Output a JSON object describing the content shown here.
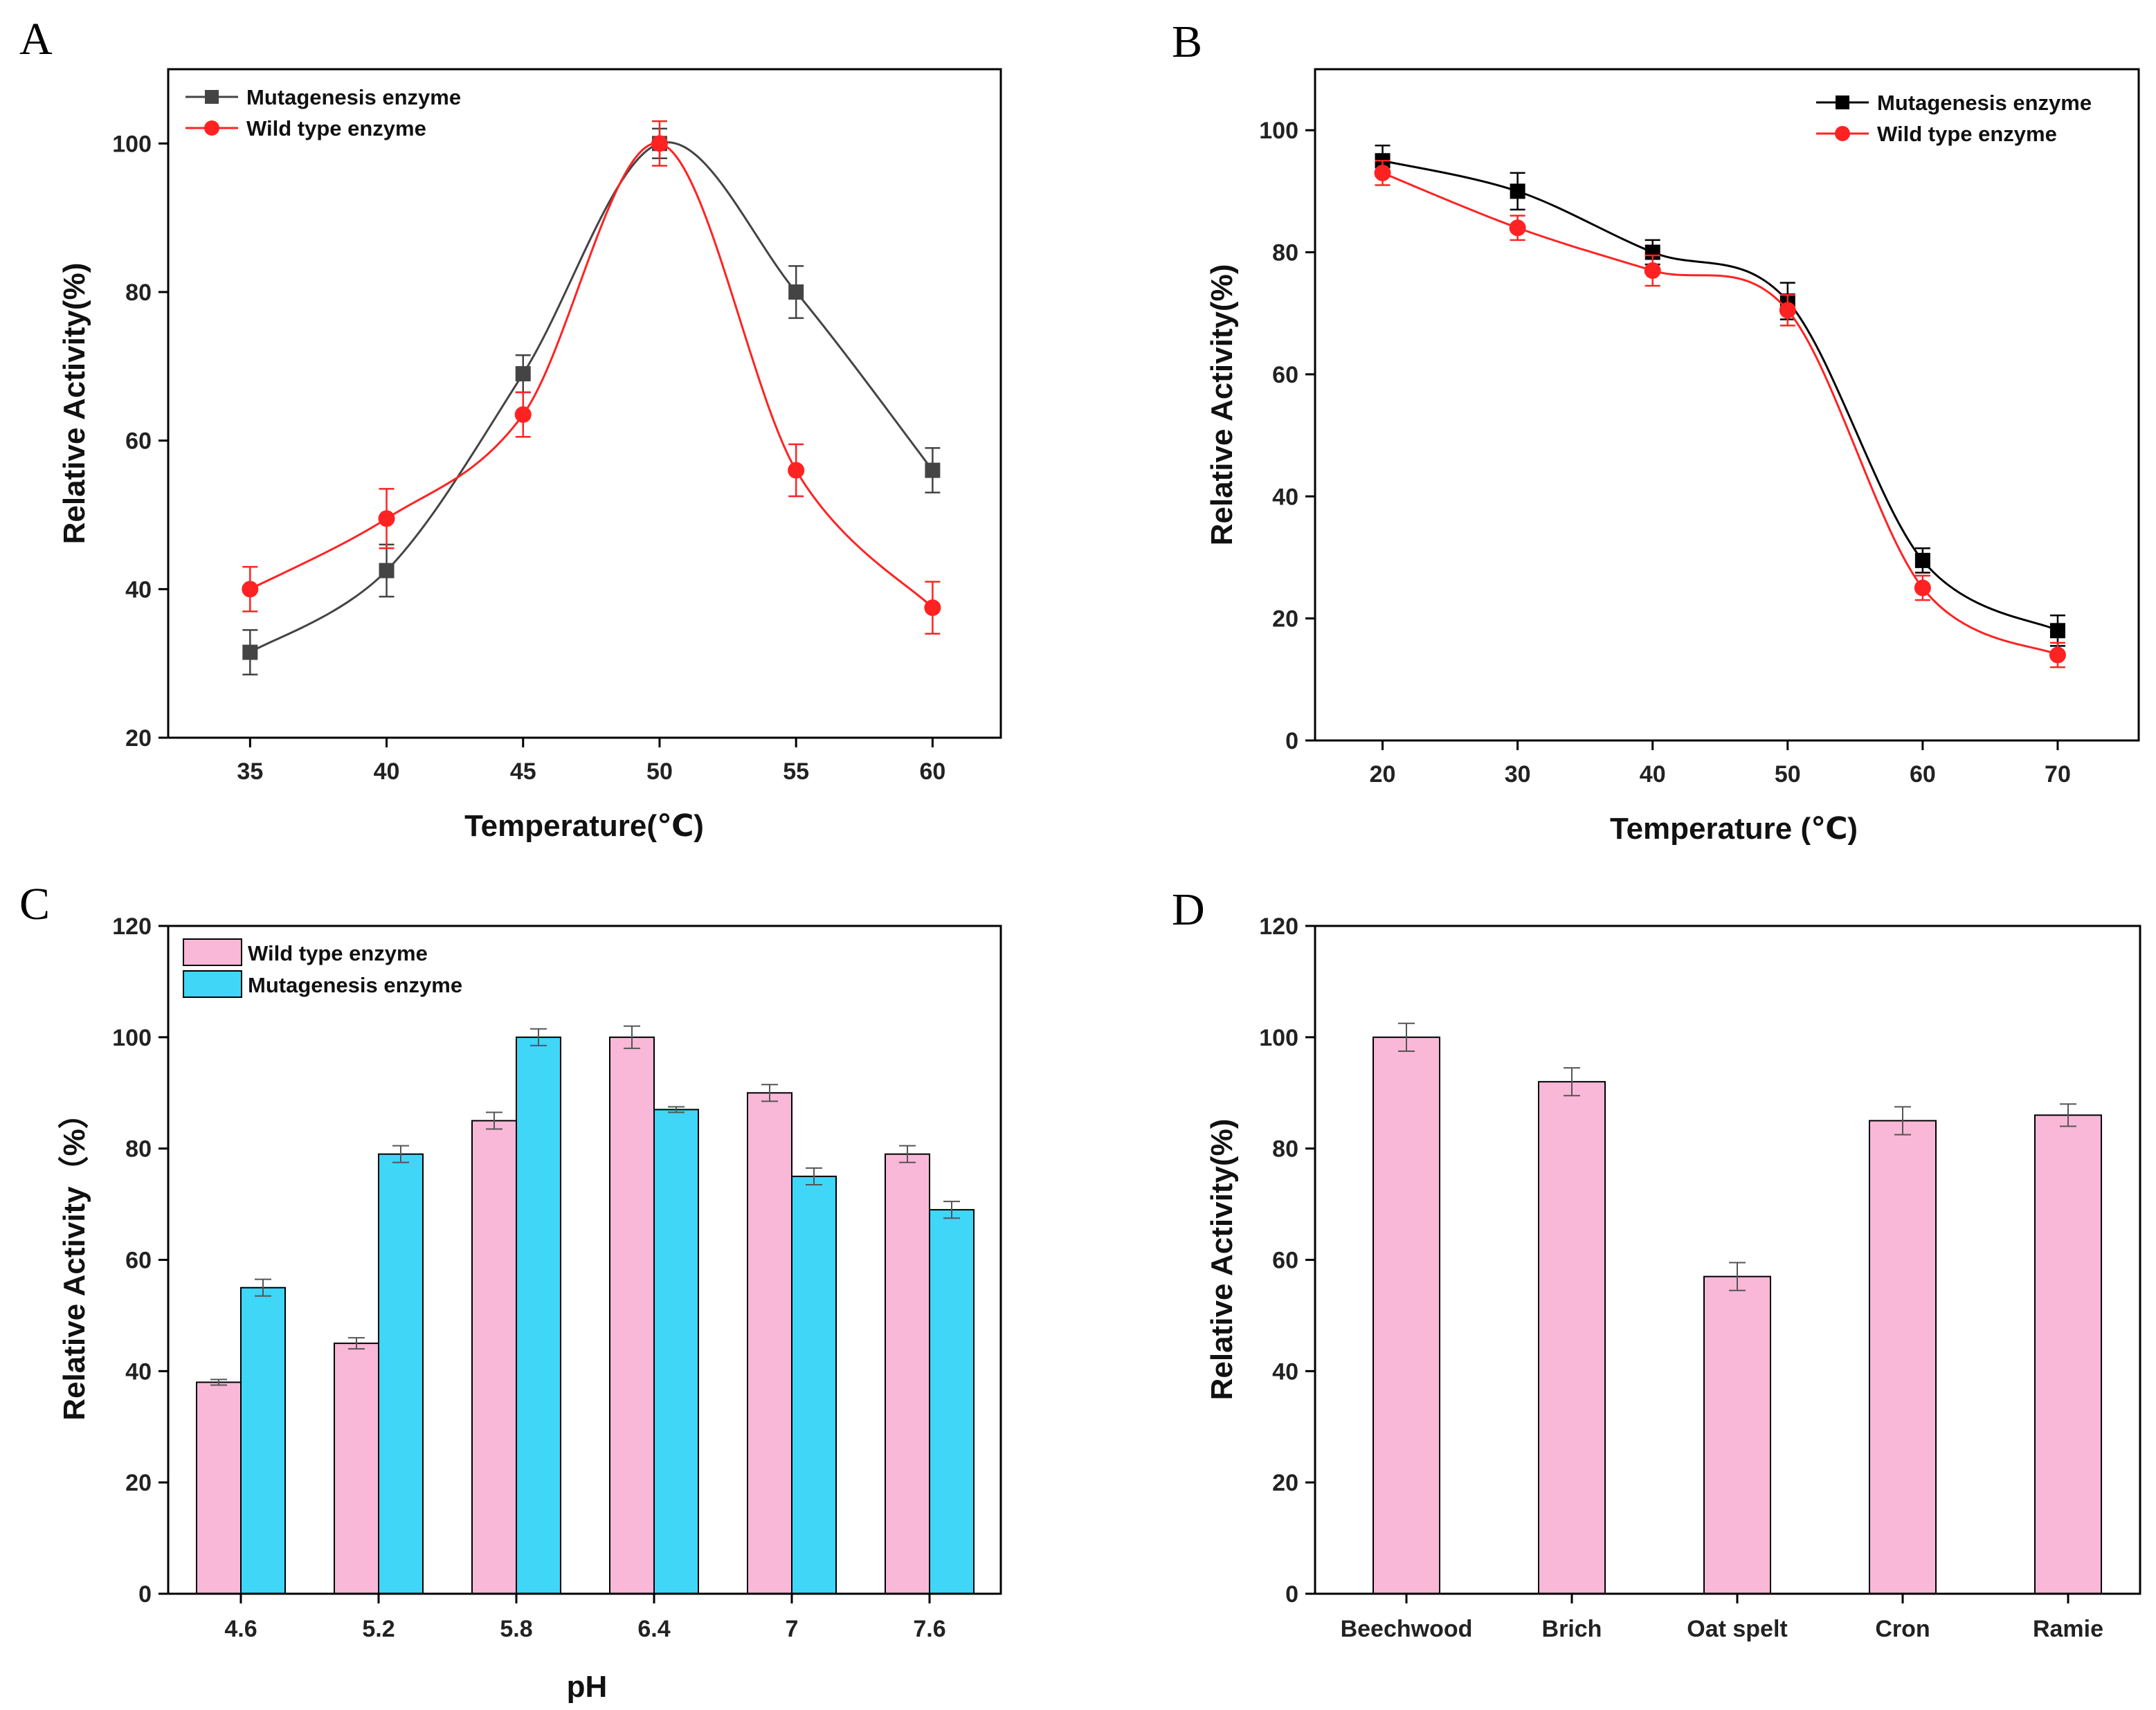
{
  "chart_data": [
    {
      "panel": "A",
      "type": "line",
      "xlabel": "Temperature(℃)",
      "ylabel": "Relative Activity(%)",
      "x": [
        35,
        40,
        45,
        50,
        55,
        60
      ],
      "xticks": [
        "35",
        "40",
        "45",
        "50",
        "55",
        "60"
      ],
      "xlim": [
        32,
        62.5
      ],
      "ylim": [
        20,
        110
      ],
      "yticks": [
        "20",
        "40",
        "60",
        "80",
        "100"
      ],
      "legend_position": "top-left",
      "series": [
        {
          "name": "Mutagenesis enzyme",
          "color": "#444444",
          "marker": "square",
          "values": [
            31.5,
            42.5,
            69,
            100,
            80,
            56
          ],
          "errors": [
            3,
            3.5,
            2.5,
            2,
            3.5,
            3
          ]
        },
        {
          "name": "Wild type enzyme",
          "color": "#ff2222",
          "marker": "circle",
          "values": [
            40,
            49.5,
            63.5,
            100,
            56,
            37.5
          ],
          "errors": [
            3,
            4,
            3,
            3,
            3.5,
            3.5
          ]
        }
      ]
    },
    {
      "panel": "B",
      "type": "line",
      "xlabel": "Temperature (℃)",
      "ylabel": "Relative Activity(%)",
      "x": [
        20,
        30,
        40,
        50,
        60,
        70
      ],
      "xticks": [
        "20",
        "30",
        "40",
        "50",
        "60",
        "70"
      ],
      "xlim": [
        15,
        76
      ],
      "ylim": [
        0,
        110
      ],
      "yticks": [
        "0",
        "20",
        "40",
        "60",
        "80",
        "100"
      ],
      "legend_position": "top-right",
      "series": [
        {
          "name": "Mutagenesis enzyme",
          "color": "#000000",
          "marker": "square",
          "values": [
            95,
            90,
            80,
            72,
            29.5,
            18
          ],
          "errors": [
            2.5,
            3,
            2,
            3,
            2,
            2.5
          ]
        },
        {
          "name": "Wild type enzyme",
          "color": "#ff2222",
          "marker": "circle",
          "values": [
            93,
            84,
            77,
            70.5,
            25,
            14
          ],
          "errors": [
            2,
            2,
            2.5,
            2.5,
            2,
            2
          ]
        }
      ]
    },
    {
      "panel": "C",
      "type": "bar",
      "xlabel": "pH",
      "ylabel": "Relative Activity（%）",
      "categories": [
        "4.6",
        "5.2",
        "5.8",
        "6.4",
        "7",
        "7.6"
      ],
      "ylim": [
        0,
        120
      ],
      "yticks": [
        "0",
        "20",
        "40",
        "60",
        "80",
        "100",
        "120"
      ],
      "legend_position": "top-left",
      "series": [
        {
          "name": "Wild type enzyme",
          "color": "#f9b8d8",
          "values": [
            38,
            45,
            85,
            100,
            90,
            79
          ],
          "errors": [
            0.5,
            1,
            1.5,
            2,
            1.5,
            1.5
          ]
        },
        {
          "name": "Mutagenesis enzyme",
          "color": "#3fd6f8",
          "values": [
            55,
            79,
            100,
            87,
            75,
            69
          ],
          "errors": [
            1.5,
            1.5,
            1.5,
            0.5,
            1.5,
            1.5
          ]
        }
      ]
    },
    {
      "panel": "D",
      "type": "bar",
      "xlabel": "",
      "ylabel": "Relative Activity(%)",
      "categories": [
        "Beechwood",
        "Brich",
        "Oat spelt",
        "Cron",
        "Ramie"
      ],
      "ylim": [
        0,
        120
      ],
      "yticks": [
        "0",
        "20",
        "40",
        "60",
        "80",
        "100",
        "120"
      ],
      "series": [
        {
          "name": "Relative activity",
          "color": "#f9b8d8",
          "values": [
            100,
            92,
            57,
            85,
            86
          ],
          "errors": [
            2.5,
            2.5,
            2.5,
            2.5,
            2
          ]
        }
      ]
    }
  ]
}
